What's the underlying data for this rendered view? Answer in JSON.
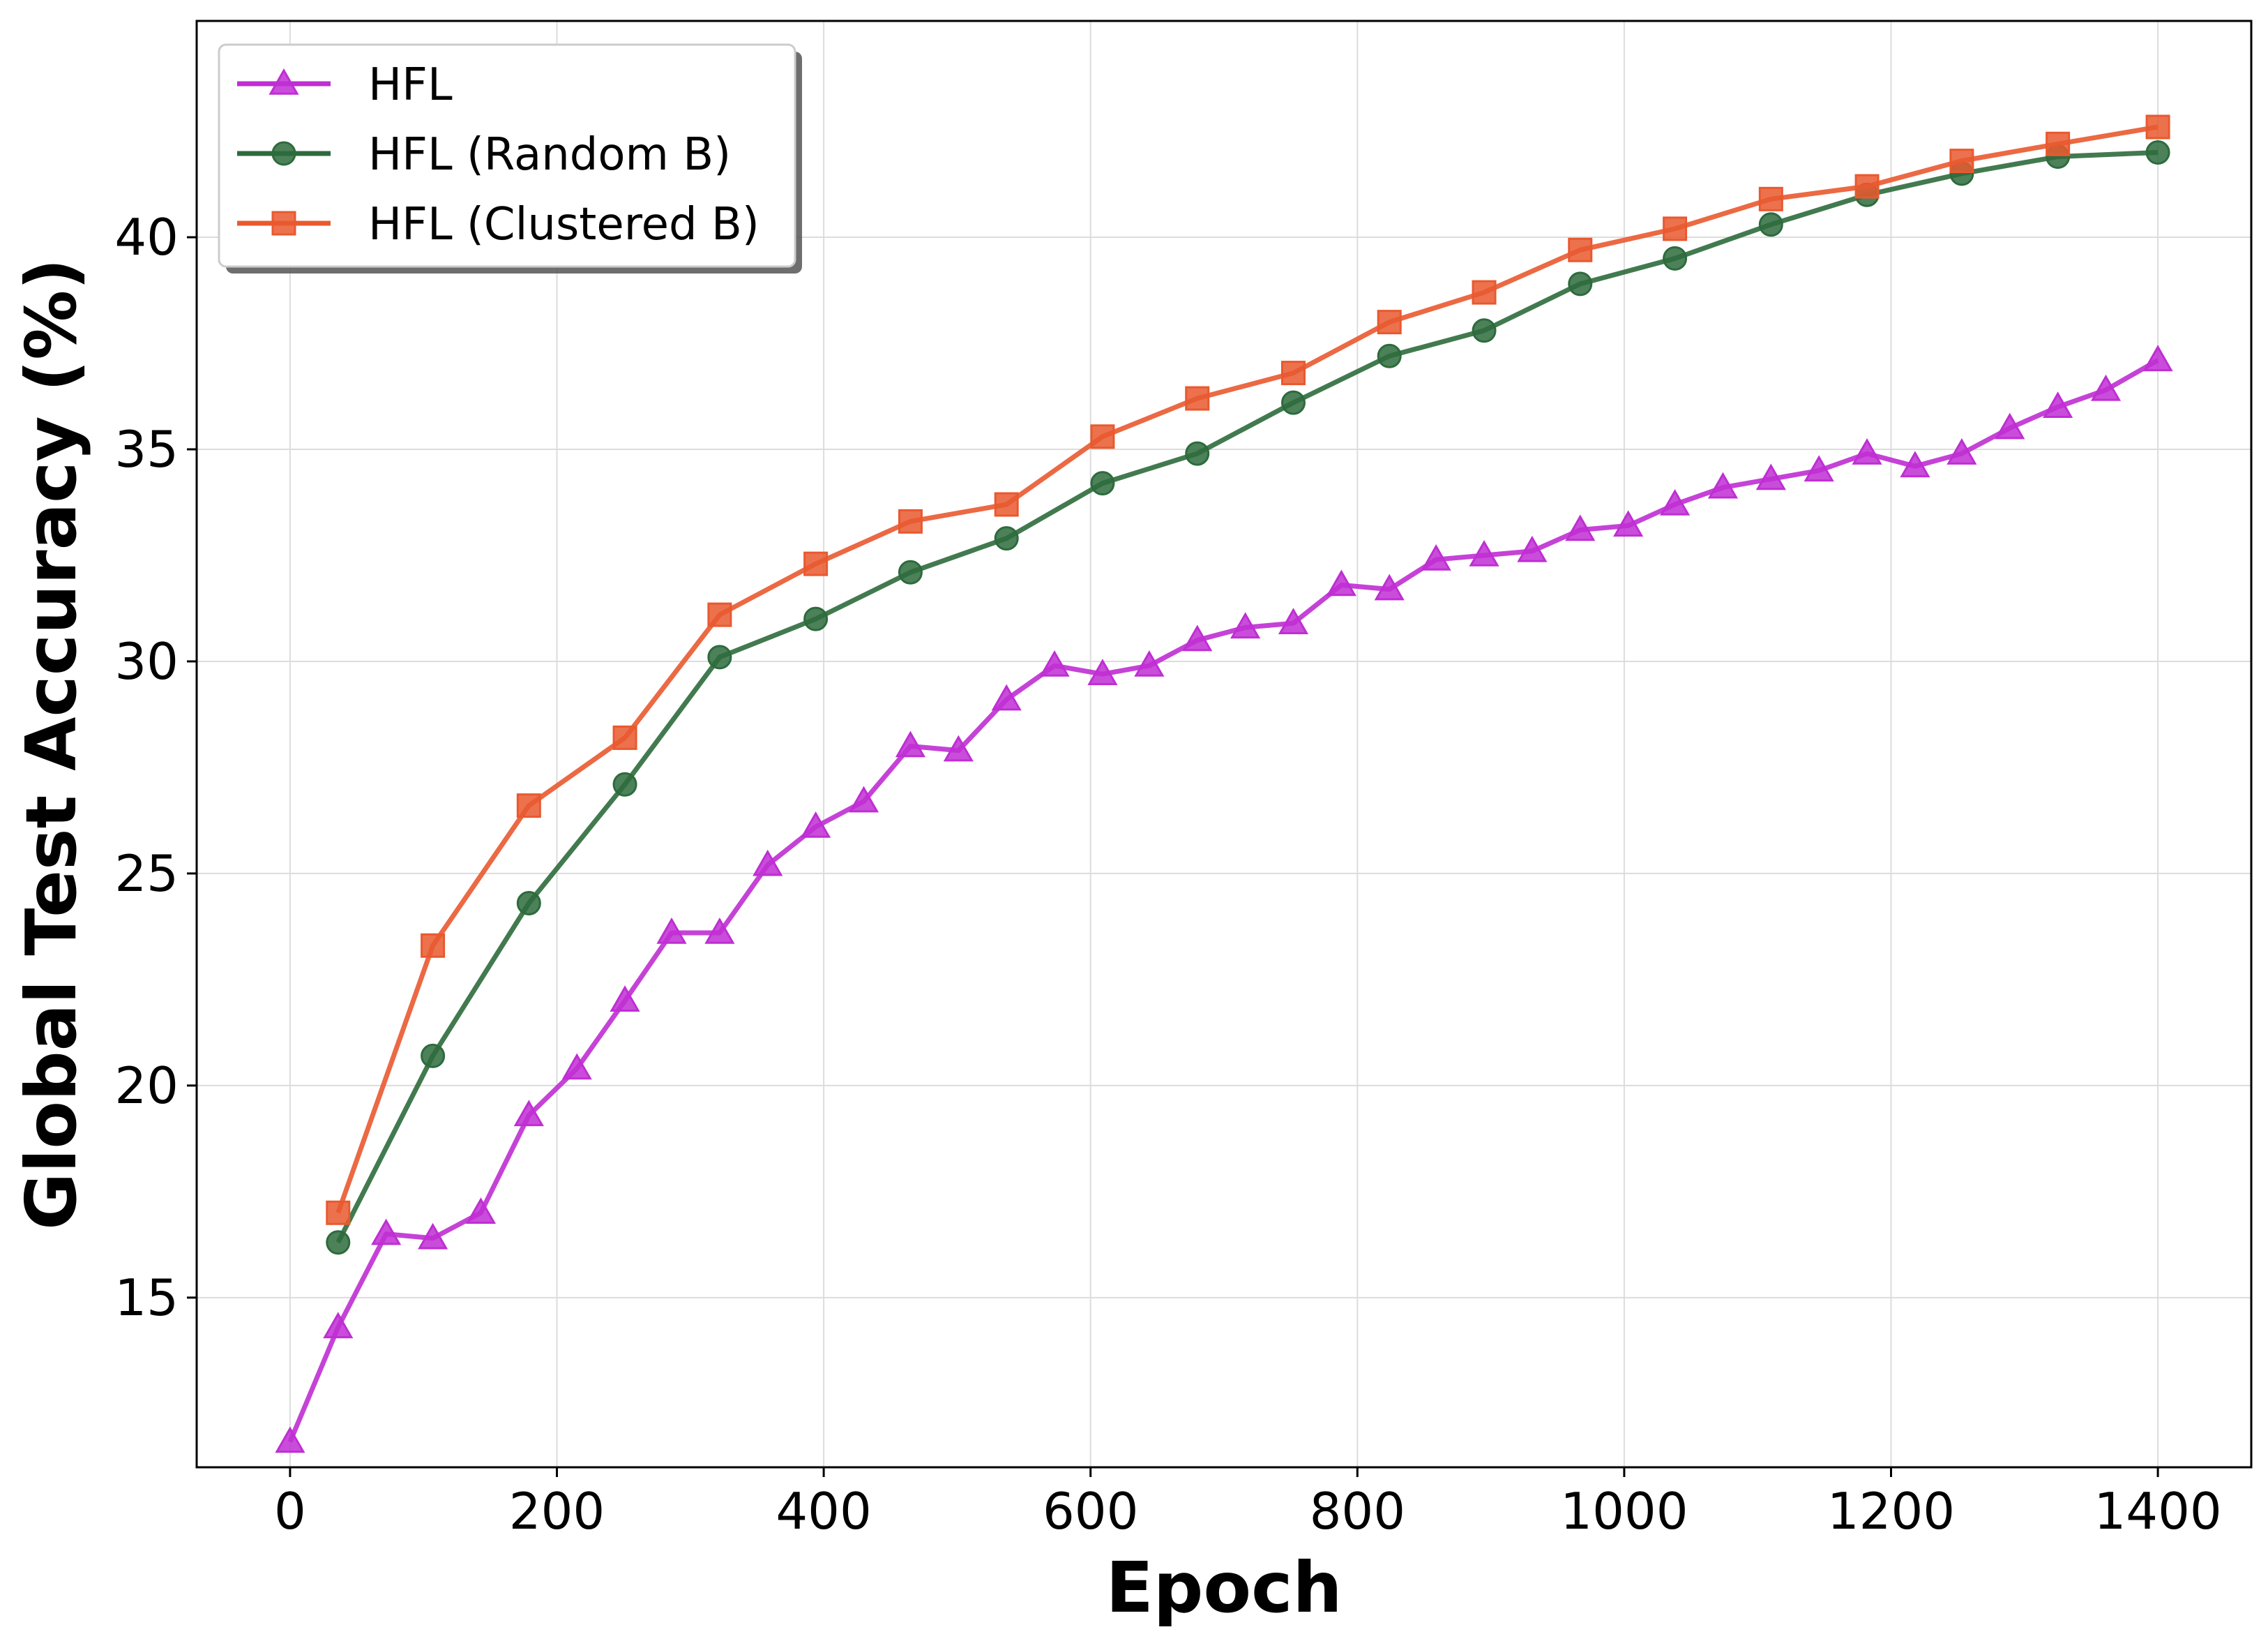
{
  "chart_data": {
    "type": "line",
    "title": "",
    "xlabel": "Epoch",
    "ylabel": "Global Test Accuracy (%)",
    "xlim": [
      -70,
      1470
    ],
    "ylim": [
      11.0,
      45.1
    ],
    "xticks": [
      0,
      200,
      400,
      600,
      800,
      1000,
      1200,
      1400
    ],
    "yticks": [
      15,
      20,
      25,
      30,
      35,
      40
    ],
    "grid": true,
    "legend_position": "top-left",
    "series": [
      {
        "name": "HFL",
        "color": "#bf2ed3",
        "marker": "triangle",
        "x": [
          0,
          36,
          72,
          107,
          143,
          179,
          215,
          251,
          286,
          322,
          358,
          394,
          430,
          465,
          501,
          537,
          573,
          609,
          644,
          680,
          716,
          752,
          788,
          824,
          859,
          895,
          931,
          967,
          1003,
          1038,
          1074,
          1110,
          1146,
          1182,
          1218,
          1253,
          1289,
          1325,
          1361,
          1400
        ],
        "values": [
          11.6,
          14.3,
          16.5,
          16.4,
          17.0,
          19.3,
          20.4,
          22.0,
          23.6,
          23.6,
          25.2,
          26.1,
          26.7,
          28.0,
          27.9,
          29.1,
          29.9,
          29.7,
          29.9,
          30.5,
          30.8,
          30.9,
          31.8,
          31.7,
          32.4,
          32.5,
          32.6,
          33.1,
          33.2,
          33.7,
          34.1,
          34.3,
          34.5,
          34.9,
          34.6,
          34.9,
          35.5,
          36.0,
          36.4,
          37.1
        ]
      },
      {
        "name": "HFL (Random B)",
        "color": "#2d6b3c",
        "marker": "circle",
        "x": [
          36,
          107,
          179,
          251,
          322,
          394,
          465,
          537,
          609,
          680,
          752,
          824,
          895,
          967,
          1038,
          1110,
          1182,
          1253,
          1325,
          1400
        ],
        "values": [
          16.3,
          20.7,
          24.3,
          27.1,
          30.1,
          31.0,
          32.1,
          32.9,
          34.2,
          34.9,
          36.1,
          37.2,
          37.8,
          38.9,
          39.5,
          40.3,
          41.0,
          41.5,
          41.9,
          42.0
        ]
      },
      {
        "name": "HFL (Clustered B)",
        "color": "#e9592f",
        "marker": "square",
        "x": [
          36,
          107,
          179,
          251,
          322,
          394,
          465,
          537,
          609,
          680,
          752,
          824,
          895,
          967,
          1038,
          1110,
          1182,
          1253,
          1325,
          1400
        ],
        "values": [
          17.0,
          23.3,
          26.6,
          28.2,
          31.1,
          32.3,
          33.3,
          33.7,
          35.3,
          36.2,
          36.8,
          38.0,
          38.7,
          39.7,
          40.2,
          40.9,
          41.2,
          41.8,
          42.2,
          42.6
        ]
      }
    ]
  }
}
